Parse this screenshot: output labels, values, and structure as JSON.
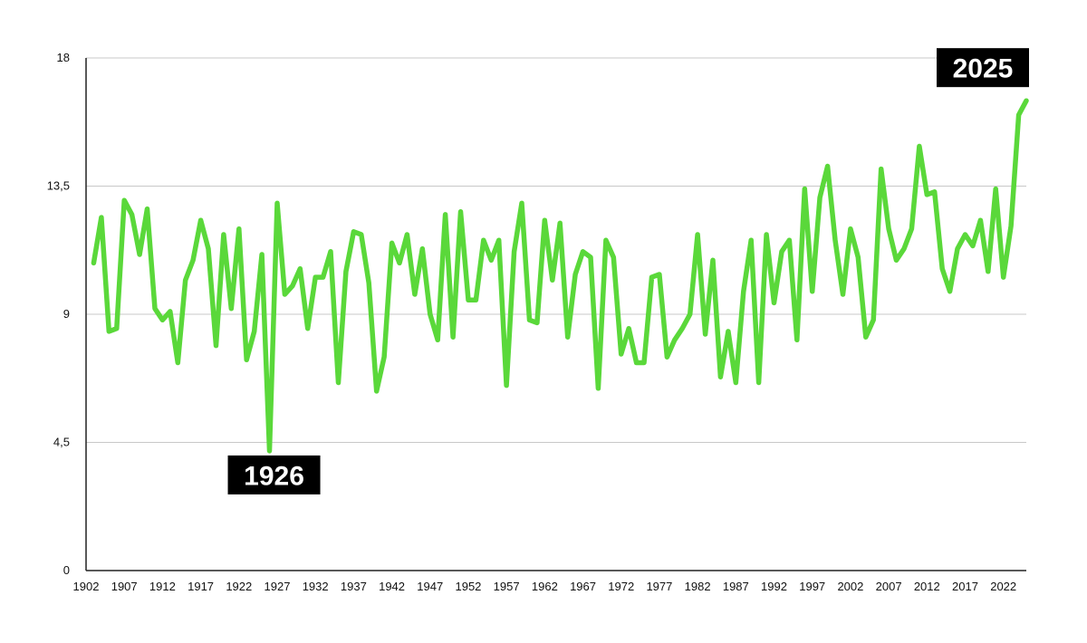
{
  "chart_data": {
    "type": "line",
    "title": "",
    "xlabel": "",
    "ylabel": "",
    "xlim": [
      1902,
      2025
    ],
    "ylim": [
      0,
      18
    ],
    "y_ticks": [
      0,
      4.5,
      9,
      13.5,
      18
    ],
    "y_tick_labels": [
      "0",
      "4,5",
      "9",
      "13,5",
      "18"
    ],
    "x_tick_labels": [
      "1902",
      "1907",
      "1912",
      "1917",
      "1922",
      "1927",
      "1932",
      "1937",
      "1942",
      "1947",
      "1952",
      "1957",
      "1962",
      "1967",
      "1972",
      "1977",
      "1982",
      "1987",
      "1992",
      "1997",
      "2002",
      "2007",
      "2012",
      "2017",
      "2022"
    ],
    "grid": "horizontal",
    "line_color": "#5ad83a",
    "annotations": [
      {
        "label": "1926",
        "x": 1926,
        "y": 4.2
      },
      {
        "label": "2025",
        "x": 2025,
        "y": 16.5
      }
    ],
    "series": [
      {
        "values": [
          {
            "x": 1903,
            "y": 10.8
          },
          {
            "x": 1904,
            "y": 12.4
          },
          {
            "x": 1905,
            "y": 8.4
          },
          {
            "x": 1906,
            "y": 8.5
          },
          {
            "x": 1907,
            "y": 13.0
          },
          {
            "x": 1908,
            "y": 12.5
          },
          {
            "x": 1909,
            "y": 11.1
          },
          {
            "x": 1910,
            "y": 12.7
          },
          {
            "x": 1911,
            "y": 9.2
          },
          {
            "x": 1912,
            "y": 8.8
          },
          {
            "x": 1913,
            "y": 9.1
          },
          {
            "x": 1914,
            "y": 7.3
          },
          {
            "x": 1915,
            "y": 10.2
          },
          {
            "x": 1916,
            "y": 10.9
          },
          {
            "x": 1917,
            "y": 12.3
          },
          {
            "x": 1918,
            "y": 11.3
          },
          {
            "x": 1919,
            "y": 7.9
          },
          {
            "x": 1920,
            "y": 11.8
          },
          {
            "x": 1921,
            "y": 9.2
          },
          {
            "x": 1922,
            "y": 12.0
          },
          {
            "x": 1923,
            "y": 7.4
          },
          {
            "x": 1924,
            "y": 8.4
          },
          {
            "x": 1925,
            "y": 11.1
          },
          {
            "x": 1926,
            "y": 4.2
          },
          {
            "x": 1927,
            "y": 12.9
          },
          {
            "x": 1928,
            "y": 9.7
          },
          {
            "x": 1929,
            "y": 10.0
          },
          {
            "x": 1930,
            "y": 10.6
          },
          {
            "x": 1931,
            "y": 8.5
          },
          {
            "x": 1932,
            "y": 10.3
          },
          {
            "x": 1933,
            "y": 10.3
          },
          {
            "x": 1934,
            "y": 11.2
          },
          {
            "x": 1935,
            "y": 6.6
          },
          {
            "x": 1936,
            "y": 10.5
          },
          {
            "x": 1937,
            "y": 11.9
          },
          {
            "x": 1938,
            "y": 11.8
          },
          {
            "x": 1939,
            "y": 10.1
          },
          {
            "x": 1940,
            "y": 6.3
          },
          {
            "x": 1941,
            "y": 7.5
          },
          {
            "x": 1942,
            "y": 11.5
          },
          {
            "x": 1943,
            "y": 10.8
          },
          {
            "x": 1944,
            "y": 11.8
          },
          {
            "x": 1945,
            "y": 9.7
          },
          {
            "x": 1946,
            "y": 11.3
          },
          {
            "x": 1947,
            "y": 9.0
          },
          {
            "x": 1948,
            "y": 8.1
          },
          {
            "x": 1949,
            "y": 12.5
          },
          {
            "x": 1950,
            "y": 8.2
          },
          {
            "x": 1951,
            "y": 12.6
          },
          {
            "x": 1952,
            "y": 9.5
          },
          {
            "x": 1953,
            "y": 9.5
          },
          {
            "x": 1954,
            "y": 11.6
          },
          {
            "x": 1955,
            "y": 10.9
          },
          {
            "x": 1956,
            "y": 11.6
          },
          {
            "x": 1957,
            "y": 6.5
          },
          {
            "x": 1958,
            "y": 11.2
          },
          {
            "x": 1959,
            "y": 12.9
          },
          {
            "x": 1960,
            "y": 8.8
          },
          {
            "x": 1961,
            "y": 8.7
          },
          {
            "x": 1962,
            "y": 12.3
          },
          {
            "x": 1963,
            "y": 10.2
          },
          {
            "x": 1964,
            "y": 12.2
          },
          {
            "x": 1965,
            "y": 8.2
          },
          {
            "x": 1966,
            "y": 10.4
          },
          {
            "x": 1967,
            "y": 11.2
          },
          {
            "x": 1968,
            "y": 11.0
          },
          {
            "x": 1969,
            "y": 6.4
          },
          {
            "x": 1970,
            "y": 11.6
          },
          {
            "x": 1971,
            "y": 11.0
          },
          {
            "x": 1972,
            "y": 7.6
          },
          {
            "x": 1973,
            "y": 8.5
          },
          {
            "x": 1974,
            "y": 7.3
          },
          {
            "x": 1975,
            "y": 7.3
          },
          {
            "x": 1976,
            "y": 10.3
          },
          {
            "x": 1977,
            "y": 10.4
          },
          {
            "x": 1978,
            "y": 7.5
          },
          {
            "x": 1979,
            "y": 8.1
          },
          {
            "x": 1980,
            "y": 8.5
          },
          {
            "x": 1981,
            "y": 9.0
          },
          {
            "x": 1982,
            "y": 11.8
          },
          {
            "x": 1983,
            "y": 8.3
          },
          {
            "x": 1984,
            "y": 10.9
          },
          {
            "x": 1985,
            "y": 6.8
          },
          {
            "x": 1986,
            "y": 8.4
          },
          {
            "x": 1987,
            "y": 6.6
          },
          {
            "x": 1988,
            "y": 9.8
          },
          {
            "x": 1989,
            "y": 11.6
          },
          {
            "x": 1990,
            "y": 6.6
          },
          {
            "x": 1991,
            "y": 11.8
          },
          {
            "x": 1992,
            "y": 9.4
          },
          {
            "x": 1993,
            "y": 11.2
          },
          {
            "x": 1994,
            "y": 11.6
          },
          {
            "x": 1995,
            "y": 8.1
          },
          {
            "x": 1996,
            "y": 13.4
          },
          {
            "x": 1997,
            "y": 9.8
          },
          {
            "x": 1998,
            "y": 13.1
          },
          {
            "x": 1999,
            "y": 14.2
          },
          {
            "x": 2000,
            "y": 11.6
          },
          {
            "x": 2001,
            "y": 9.7
          },
          {
            "x": 2002,
            "y": 12.0
          },
          {
            "x": 2003,
            "y": 11.0
          },
          {
            "x": 2004,
            "y": 8.2
          },
          {
            "x": 2005,
            "y": 8.8
          },
          {
            "x": 2006,
            "y": 14.1
          },
          {
            "x": 2007,
            "y": 12.0
          },
          {
            "x": 2008,
            "y": 10.9
          },
          {
            "x": 2009,
            "y": 11.3
          },
          {
            "x": 2010,
            "y": 12.0
          },
          {
            "x": 2011,
            "y": 14.9
          },
          {
            "x": 2012,
            "y": 13.2
          },
          {
            "x": 2013,
            "y": 13.3
          },
          {
            "x": 2014,
            "y": 10.6
          },
          {
            "x": 2015,
            "y": 9.8
          },
          {
            "x": 2016,
            "y": 11.3
          },
          {
            "x": 2017,
            "y": 11.8
          },
          {
            "x": 2018,
            "y": 11.4
          },
          {
            "x": 2019,
            "y": 12.3
          },
          {
            "x": 2020,
            "y": 10.5
          },
          {
            "x": 2021,
            "y": 13.4
          },
          {
            "x": 2022,
            "y": 10.3
          },
          {
            "x": 2023,
            "y": 12.1
          },
          {
            "x": 2024,
            "y": 16.0
          },
          {
            "x": 2025,
            "y": 16.5
          }
        ]
      }
    ]
  }
}
